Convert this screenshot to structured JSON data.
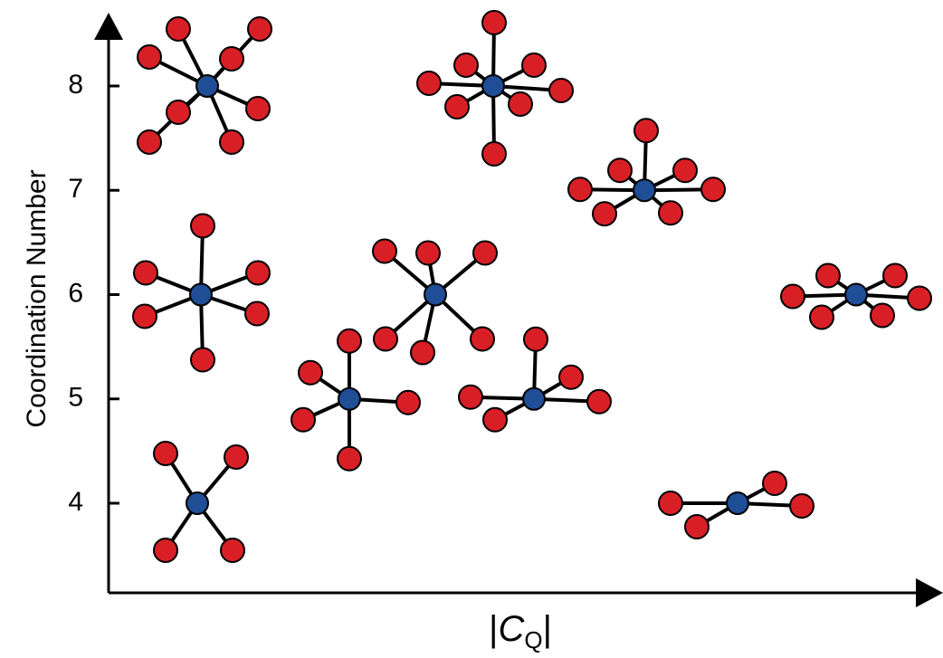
{
  "y_axis": {
    "label": "Coordination Number",
    "ticks": [
      4,
      5,
      6,
      7,
      8
    ]
  },
  "x_axis": {
    "prefix": "|",
    "symbol": "C",
    "subscript": "Q",
    "suffix": "|"
  },
  "structures": [
    {
      "coordination": 8
    },
    {
      "coordination": 8
    },
    {
      "coordination": 7
    },
    {
      "coordination": 6
    },
    {
      "coordination": 6
    },
    {
      "coordination": 6
    },
    {
      "coordination": 5
    },
    {
      "coordination": 5
    },
    {
      "coordination": 4
    },
    {
      "coordination": 4
    }
  ]
}
